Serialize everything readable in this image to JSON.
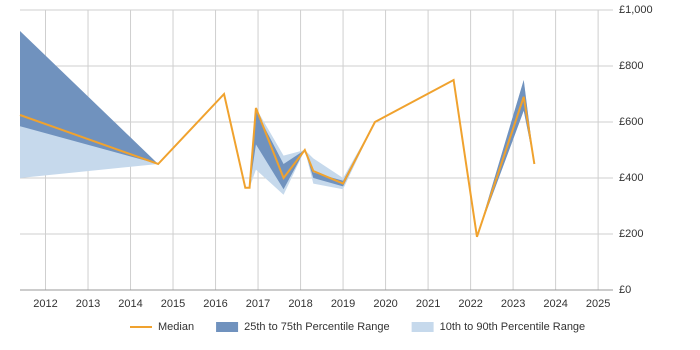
{
  "chart_data": {
    "type": "line",
    "x": [
      2011.4,
      2014.65,
      2016.2,
      2016.7,
      2016.8,
      2016.95,
      2017.6,
      2018.1,
      2018.3,
      2019.0,
      2019.75,
      2021.6,
      2022.15,
      2023.25,
      2023.5
    ],
    "series": [
      {
        "name": "10th to 90th Percentile Range",
        "color": "#c6d9ec",
        "kind": "band",
        "upper": [
          620,
          450,
          700,
          365,
          365,
          650,
          480,
          500,
          470,
          400,
          600,
          750,
          190,
          750,
          450
        ],
        "lower": [
          400,
          450,
          700,
          365,
          365,
          430,
          340,
          500,
          380,
          360,
          600,
          750,
          190,
          640,
          450
        ]
      },
      {
        "name": "25th to 75th Percentile Range",
        "color": "#7092be",
        "kind": "band",
        "upper": [
          925,
          450,
          700,
          365,
          365,
          640,
          450,
          500,
          420,
          390,
          600,
          750,
          190,
          750,
          450
        ],
        "lower": [
          585,
          450,
          700,
          365,
          365,
          520,
          360,
          500,
          400,
          370,
          600,
          750,
          190,
          640,
          450
        ]
      },
      {
        "name": "Median",
        "color": "#f0a22e",
        "kind": "line",
        "values": [
          625,
          450,
          700,
          365,
          365,
          650,
          400,
          500,
          425,
          380,
          600,
          750,
          190,
          690,
          450
        ]
      }
    ],
    "legend_order": [
      2,
      1,
      0
    ],
    "xlim": [
      2011.4,
      2025.35
    ],
    "xticks": [
      2012,
      2013,
      2014,
      2015,
      2016,
      2017,
      2018,
      2019,
      2020,
      2021,
      2022,
      2023,
      2024,
      2025
    ],
    "ylim": [
      0,
      1000
    ],
    "yticks": [
      {
        "value": 0,
        "label": "£0"
      },
      {
        "value": 200,
        "label": "£200"
      },
      {
        "value": 400,
        "label": "£400"
      },
      {
        "value": 600,
        "label": "£600"
      },
      {
        "value": 800,
        "label": "£800"
      },
      {
        "value": 1000,
        "label": "£1,000"
      }
    ],
    "grid": true
  }
}
